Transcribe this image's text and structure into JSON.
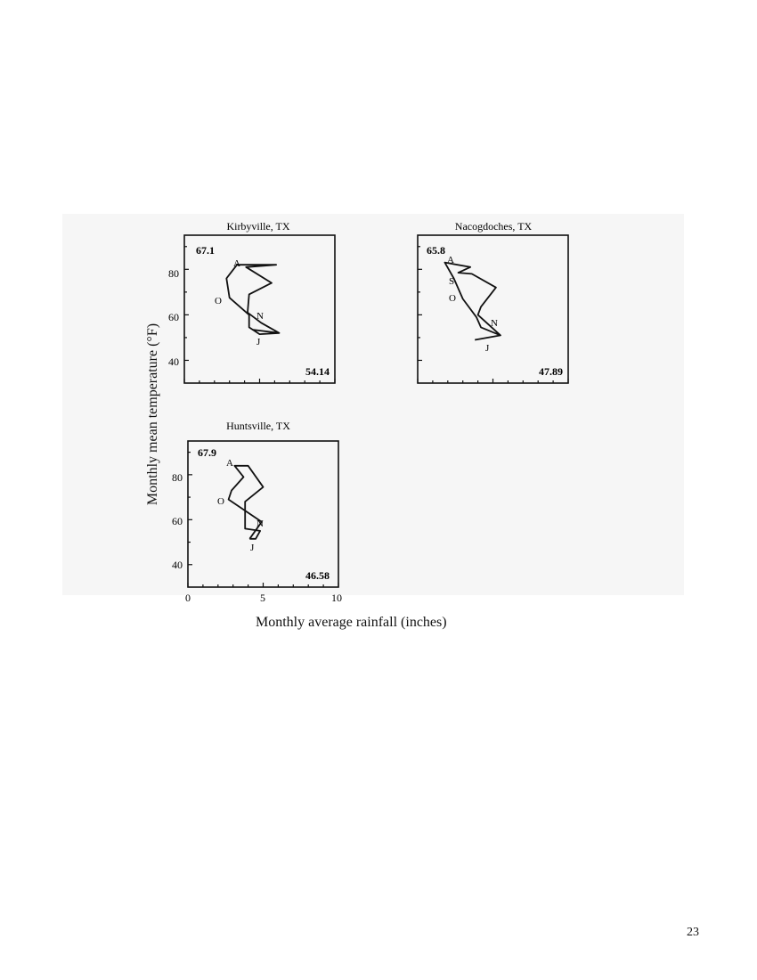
{
  "axes": {
    "ylabel": "Monthly mean temperature (°F)",
    "xlabel": "Monthly average rainfall (inches)"
  },
  "page_number": "23",
  "chart_data": {
    "type": "line",
    "xlabel": "Monthly average rainfall (inches)",
    "ylabel": "Monthly mean temperature (°F)",
    "xlim": [
      0,
      10
    ],
    "ylim": [
      30,
      95
    ],
    "x_ticks": [
      "0",
      "5",
      "10"
    ],
    "y_ticks": [
      "40",
      "60",
      "80"
    ],
    "grid": false,
    "panels": [
      {
        "title": "Kirbyville, TX",
        "mean_temperature_label": "67.1",
        "annual_rainfall_label": "54.14",
        "month_labels": [
          "A",
          "O",
          "N",
          "J"
        ],
        "points": [
          [
            4.5,
            53.5
          ],
          [
            6.3,
            52.0
          ],
          [
            5.0,
            51.5
          ],
          [
            4.3,
            54.5
          ],
          [
            4.3,
            60.0
          ],
          [
            3.0,
            67.5
          ],
          [
            2.8,
            76.0
          ],
          [
            3.5,
            82.0
          ],
          [
            6.1,
            82.0
          ],
          [
            4.1,
            81.0
          ],
          [
            5.8,
            74.0
          ],
          [
            4.3,
            69.0
          ],
          [
            4.2,
            61.0
          ],
          [
            5.1,
            56.5
          ],
          [
            6.3,
            52.0
          ]
        ]
      },
      {
        "title": "Nacogdoches, TX",
        "mean_temperature_label": "65.8",
        "annual_rainfall_label": "47.89",
        "month_labels": [
          "A",
          "S",
          "O",
          "N",
          "J"
        ],
        "points": [
          [
            3.8,
            49.0
          ],
          [
            5.5,
            51.0
          ],
          [
            4.2,
            54.5
          ],
          [
            3.9,
            59.0
          ],
          [
            3.0,
            67.0
          ],
          [
            2.4,
            76.0
          ],
          [
            1.8,
            83.0
          ],
          [
            3.5,
            81.0
          ],
          [
            2.7,
            78.5
          ],
          [
            3.6,
            78.0
          ],
          [
            5.2,
            72.0
          ],
          [
            4.2,
            63.5
          ],
          [
            4.0,
            60.0
          ],
          [
            5.5,
            51.0
          ]
        ]
      },
      {
        "title": "Huntsville, TX",
        "mean_temperature_label": "67.9",
        "annual_rainfall_label": "46.58",
        "month_labels": [
          "A",
          "O",
          "N",
          "J"
        ],
        "points": [
          [
            4.1,
            51.5
          ],
          [
            4.5,
            51.5
          ],
          [
            4.8,
            55.0
          ],
          [
            3.8,
            56.0
          ],
          [
            3.8,
            68.0
          ],
          [
            5.0,
            74.5
          ],
          [
            4.0,
            84.0
          ],
          [
            3.1,
            84.0
          ],
          [
            3.7,
            79.0
          ],
          [
            2.9,
            73.0
          ],
          [
            2.7,
            69.0
          ],
          [
            4.9,
            59.0
          ],
          [
            4.1,
            51.5
          ]
        ]
      }
    ]
  }
}
